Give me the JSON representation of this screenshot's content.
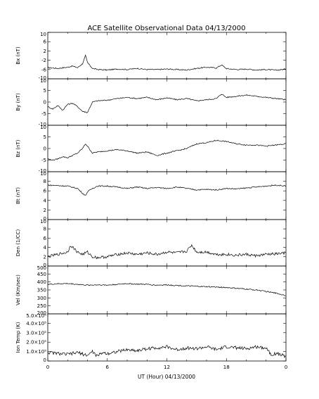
{
  "title": "ACE Satellite Observational Data   04/13/2000",
  "xlabel": "UT (Hour)   04/13/2000",
  "x_ticks": [
    "0",
    "6",
    "12",
    "18",
    "0"
  ],
  "x_range": [
    0,
    24
  ],
  "colors": {
    "line": "#000000",
    "background": "#ffffff"
  },
  "chart_data": [
    {
      "type": "line",
      "name": "bx",
      "ylabel": "Bx (nT)",
      "ylim": [
        -10,
        10
      ],
      "y_ticks": [
        "10",
        "6",
        "2",
        "-2",
        "-6",
        "-10"
      ],
      "y_tick_values": [
        10,
        6,
        2,
        -2,
        -6,
        -10
      ],
      "x": [
        0,
        1,
        2,
        2.5,
        3,
        3.5,
        3.8,
        4,
        4.5,
        5,
        6,
        7,
        8,
        9,
        10,
        11,
        12,
        13,
        14,
        15,
        16,
        17,
        17.5,
        18,
        19,
        20,
        21,
        22,
        23,
        24
      ],
      "y": [
        -5.2,
        -5.5,
        -5,
        -4.5,
        -5.2,
        -3.5,
        0,
        -3,
        -5.5,
        -6,
        -6.2,
        -5.8,
        -6,
        -5.5,
        -6,
        -6,
        -5.8,
        -6,
        -6.2,
        -5.5,
        -5,
        -5.3,
        -4,
        -5.6,
        -6,
        -5.8,
        -6.2,
        -6,
        -6.3,
        -5.8
      ]
    },
    {
      "type": "line",
      "name": "by",
      "ylabel": "By (nT)",
      "ylim": [
        -10,
        10
      ],
      "y_ticks": [
        "10",
        "5",
        "0",
        "-5",
        "-10"
      ],
      "y_tick_values": [
        10,
        5,
        0,
        -5,
        -10
      ],
      "x": [
        0,
        0.5,
        1,
        1.5,
        2,
        2.5,
        3,
        3.5,
        4,
        4.5,
        5,
        6,
        7,
        8,
        9,
        10,
        11,
        12,
        13,
        14,
        15,
        16,
        17,
        17.5,
        18,
        19,
        20,
        21,
        22,
        23,
        24
      ],
      "y": [
        -2,
        -3,
        -1.5,
        -3.5,
        -1,
        -0.5,
        -2,
        -4,
        -4.5,
        0,
        0.5,
        0.8,
        1.5,
        2,
        1.5,
        2,
        1,
        1.8,
        1,
        1.5,
        0.5,
        1,
        1.5,
        3.5,
        2,
        2.5,
        3,
        2.5,
        2,
        1.5,
        1
      ]
    },
    {
      "type": "line",
      "name": "bz",
      "ylabel": "Bz (nT)",
      "ylim": [
        -10,
        10
      ],
      "y_ticks": [
        "10",
        "5",
        "0",
        "-5",
        "-10"
      ],
      "y_tick_values": [
        10,
        5,
        0,
        -5,
        -10
      ],
      "x": [
        0,
        0.5,
        1,
        1.5,
        2,
        2.5,
        3,
        3.5,
        3.8,
        4,
        4.5,
        5,
        6,
        7,
        8,
        9,
        10,
        11,
        12,
        13,
        14,
        15,
        16,
        17,
        18,
        19,
        20,
        21,
        22,
        23,
        24
      ],
      "y": [
        -4.5,
        -5,
        -4.5,
        -3.5,
        -4,
        -3,
        -2,
        0,
        2,
        1,
        -2,
        -1.5,
        -1,
        -0.5,
        -1,
        -2,
        -1.5,
        -3,
        -2,
        -1,
        0,
        2,
        2.5,
        3.5,
        3,
        2,
        1.5,
        1.5,
        1,
        1.5,
        2
      ]
    },
    {
      "type": "line",
      "name": "bt",
      "ylabel": "Bt (nT)",
      "ylim": [
        0,
        10
      ],
      "y_ticks": [
        "10",
        "8",
        "6",
        "4",
        "2",
        "0"
      ],
      "y_tick_values": [
        10,
        8,
        6,
        4,
        2,
        0
      ],
      "x": [
        0,
        1,
        2,
        3,
        3.5,
        3.8,
        4,
        4.5,
        5,
        6,
        7,
        8,
        9,
        10,
        11,
        12,
        13,
        14,
        15,
        16,
        17,
        18,
        19,
        20,
        21,
        22,
        23,
        24
      ],
      "y": [
        7.2,
        7.1,
        7,
        6.5,
        5.5,
        5,
        5.8,
        6.5,
        7,
        7,
        6.8,
        6.5,
        6.8,
        6.5,
        6.7,
        6.5,
        6.8,
        6.5,
        6.2,
        6.3,
        6.2,
        6.5,
        6.4,
        6.6,
        6.8,
        7,
        7.2,
        7
      ]
    },
    {
      "type": "line",
      "name": "den",
      "ylabel": "Den (1/CC)",
      "ylim": [
        0,
        10
      ],
      "y_ticks": [
        "10",
        "8",
        "6",
        "4",
        "2",
        "0"
      ],
      "y_tick_values": [
        10,
        8,
        6,
        4,
        2,
        0
      ],
      "x": [
        0,
        1,
        2,
        2.3,
        3,
        3.5,
        4,
        4.5,
        5,
        6,
        7,
        8,
        9,
        10,
        11,
        12,
        13,
        14,
        14.5,
        15,
        16,
        17,
        18,
        19,
        20,
        21,
        22,
        23,
        24
      ],
      "y": [
        2,
        2.5,
        3,
        4.5,
        3,
        2.5,
        3,
        2,
        1.8,
        2,
        2.5,
        2.8,
        2.5,
        2.8,
        2.5,
        3,
        2.8,
        3.2,
        4.5,
        3,
        3,
        2.5,
        2.5,
        2.3,
        2.5,
        2.2,
        2.5,
        2.6,
        2.8
      ]
    },
    {
      "type": "line",
      "name": "vel",
      "ylabel": "Vel (Km/sec)",
      "ylim": [
        200,
        500
      ],
      "y_ticks": [
        "500",
        "450",
        "400",
        "350",
        "300",
        "250",
        "200"
      ],
      "y_tick_values": [
        500,
        450,
        400,
        350,
        300,
        250,
        200
      ],
      "x": [
        0,
        1,
        2,
        3,
        4,
        5,
        6,
        7,
        8,
        9,
        10,
        11,
        12,
        13,
        14,
        15,
        16,
        17,
        18,
        19,
        20,
        21,
        22,
        23,
        24
      ],
      "y": [
        385,
        388,
        390,
        385,
        380,
        382,
        380,
        385,
        390,
        386,
        385,
        380,
        382,
        378,
        375,
        372,
        370,
        368,
        365,
        360,
        355,
        350,
        340,
        330,
        315
      ]
    },
    {
      "type": "line",
      "name": "temp",
      "ylabel": "Ion Temp (K)",
      "ylim": [
        0,
        500000
      ],
      "y_ticks": [
        "5.0×10⁵",
        "4.0×10⁵",
        "3.0×10⁵",
        "2.0×10⁵",
        "1.0×10⁵",
        "0"
      ],
      "y_tick_values": [
        500000,
        400000,
        300000,
        200000,
        100000,
        0
      ],
      "x": [
        0,
        1,
        2,
        3,
        4,
        4.5,
        5,
        5.5,
        6,
        7,
        8,
        9,
        10,
        11,
        12,
        13,
        14,
        15,
        16,
        17,
        18,
        19,
        20,
        21,
        22,
        22.5,
        23,
        24
      ],
      "y": [
        90000,
        80000,
        70000,
        90000,
        60000,
        100000,
        50000,
        90000,
        80000,
        100000,
        120000,
        110000,
        130000,
        140000,
        150000,
        120000,
        140000,
        130000,
        150000,
        120000,
        150000,
        140000,
        130000,
        150000,
        140000,
        70000,
        80000,
        50000
      ]
    }
  ]
}
